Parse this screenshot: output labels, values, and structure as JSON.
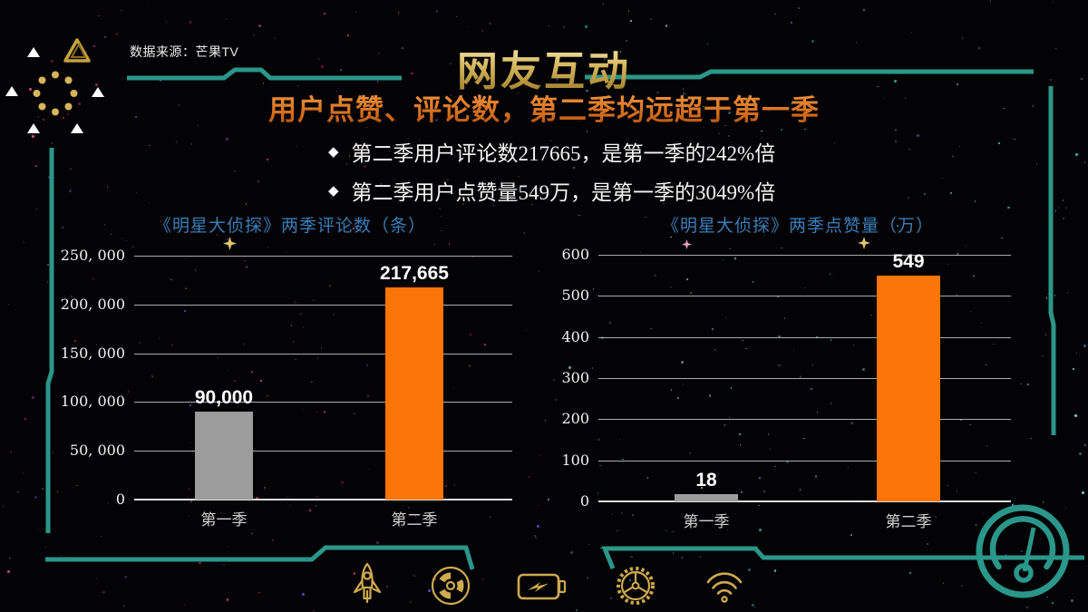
{
  "source": {
    "label": "数据来源：芒果TV"
  },
  "header": {
    "title": "网友互动",
    "subtitle": "用户点赞、评论数，第二季均远超于第一季",
    "bullet_marker": "◆",
    "bullets": [
      "第二季用户评论数217665，是第一季的242%倍",
      "第二季用户点赞量549万，是第一季的3049%倍"
    ]
  },
  "chart_data": [
    {
      "type": "bar",
      "title": "《明星大侦探》两季评论数（条）",
      "categories": [
        "第一季",
        "第二季"
      ],
      "values": [
        90000,
        217665
      ],
      "value_labels": [
        "90,000",
        "217,665"
      ],
      "bar_colors": [
        "#9c9c9c",
        "#fd7408"
      ],
      "ylim": [
        0,
        250000
      ],
      "ytick_step": 50000,
      "ytick_labels": [
        "0",
        "50, 000",
        "100, 000",
        "150, 000",
        "200, 000",
        "250, 000"
      ],
      "grid": true,
      "legend": "none",
      "xlabel": "",
      "ylabel": ""
    },
    {
      "type": "bar",
      "title": "《明星大侦探》两季点赞量（万）",
      "categories": [
        "第一季",
        "第二季"
      ],
      "values": [
        18,
        549
      ],
      "value_labels": [
        "18",
        "549"
      ],
      "bar_colors": [
        "#9c9c9c",
        "#fd7408"
      ],
      "ylim": [
        0,
        600
      ],
      "ytick_step": 100,
      "ytick_labels": [
        "0",
        "100",
        "200",
        "300",
        "400",
        "500",
        "600"
      ],
      "grid": true,
      "legend": "none",
      "xlabel": "",
      "ylabel": ""
    }
  ],
  "footer": {
    "icons": [
      "rocket",
      "radiation",
      "battery",
      "gear-wheel",
      "wifi"
    ],
    "corner_icon": "gauge"
  },
  "decor": {
    "left_icons": [
      "triforce-triangle",
      "dot-circle",
      "small-triangles"
    ]
  },
  "colors": {
    "teal_frame": "#2b968a",
    "gold_icon": "#cfa94f",
    "orange_bar": "#fd7408",
    "gray_bar": "#9c9c9c",
    "chart_title_blue": "#3b7db8",
    "subtitle_orange": "#d2691a",
    "title_gold": "#d8ba62"
  }
}
